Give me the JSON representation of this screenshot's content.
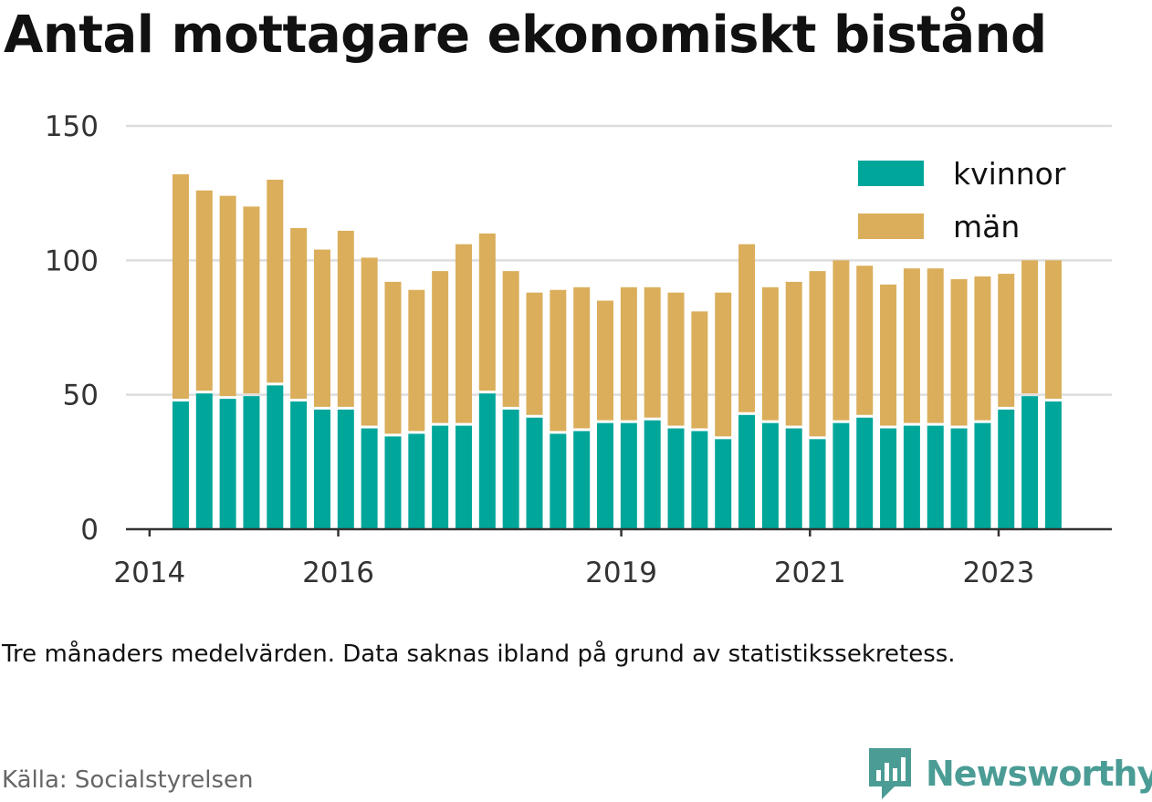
{
  "title": "Antal mottagare ekonomiskt bistånd",
  "note": "Tre månaders medelvärden. Data saknas ibland på grund av statistikssekretess.",
  "source": "Källa: Socialstyrelsen",
  "brand": {
    "name": "Newsworthy",
    "color": "#4a9c95"
  },
  "chart_data": {
    "type": "bar",
    "stacked": true,
    "xlabel": "",
    "ylabel": "",
    "ylim": [
      0,
      150
    ],
    "yticks": [
      0,
      50,
      100,
      150
    ],
    "xticks": [
      {
        "label": "2014",
        "x": 2014.0
      },
      {
        "label": "2016",
        "x": 2016.0
      },
      {
        "label": "2019",
        "x": 2019.0
      },
      {
        "label": "2021",
        "x": 2021.0
      },
      {
        "label": "2023",
        "x": 2023.0
      }
    ],
    "xlim": [
      2013.75,
      2024.2
    ],
    "grid": true,
    "legend_position": "top-right",
    "x": [
      2014.33,
      2014.58,
      2014.83,
      2015.08,
      2015.33,
      2015.58,
      2015.83,
      2016.08,
      2016.33,
      2016.58,
      2016.83,
      2017.08,
      2017.33,
      2017.58,
      2017.83,
      2018.08,
      2018.33,
      2018.58,
      2018.83,
      2019.08,
      2019.33,
      2019.58,
      2019.83,
      2020.08,
      2020.33,
      2020.58,
      2020.83,
      2021.08,
      2021.33,
      2021.58,
      2021.83,
      2022.08,
      2022.33,
      2022.58,
      2022.83,
      2023.08,
      2023.33,
      2023.58
    ],
    "series": [
      {
        "name": "kvinnor",
        "color": "#00a69a",
        "values": [
          48,
          51,
          49,
          50,
          54,
          48,
          45,
          45,
          38,
          35,
          36,
          39,
          39,
          51,
          45,
          42,
          36,
          37,
          40,
          40,
          41,
          38,
          37,
          34,
          43,
          40,
          38,
          34,
          40,
          42,
          38,
          39,
          39,
          38,
          40,
          45,
          50,
          48
        ]
      },
      {
        "name": "män",
        "color": "#dbae5b",
        "values": [
          84,
          75,
          75,
          70,
          76,
          64,
          59,
          66,
          63,
          57,
          53,
          57,
          67,
          59,
          51,
          46,
          53,
          53,
          45,
          50,
          49,
          50,
          44,
          54,
          63,
          50,
          54,
          62,
          60,
          56,
          53,
          58,
          58,
          55,
          54,
          50,
          50,
          52
        ]
      }
    ]
  }
}
